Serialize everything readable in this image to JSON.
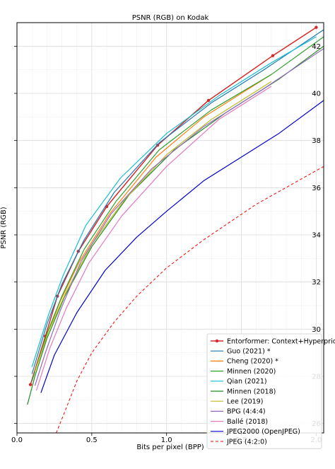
{
  "chart_data": {
    "type": "line",
    "title": "PSNR (RGB) on Kodak",
    "xlabel": "Bits per pixel (BPP)",
    "ylabel": "PSNR (RGB)",
    "xlim": [
      0.0,
      2.05
    ],
    "ylim": [
      25.6,
      43.0
    ],
    "xticks": [
      0.0,
      0.5,
      1.0,
      1.5,
      2.0
    ],
    "xtick_labels": [
      "0.0",
      "0.5",
      "1.0",
      "1.5",
      "2.0"
    ],
    "yticks": [
      26,
      28,
      30,
      32,
      34,
      36,
      38,
      40,
      42
    ],
    "ytick_labels": [
      "26",
      "28",
      "30",
      "32",
      "34",
      "36",
      "38",
      "40",
      "42"
    ],
    "grid": true,
    "legend_position": "lower-right",
    "series": [
      {
        "name": "Entorformer: Context+Hyperprior",
        "color": "#d62728",
        "dash": "",
        "marker": true,
        "width": 1.5,
        "points": [
          [
            0.09,
            27.65
          ],
          [
            0.19,
            29.7
          ],
          [
            0.27,
            31.4
          ],
          [
            0.41,
            33.3
          ],
          [
            0.6,
            35.2
          ],
          [
            0.94,
            37.8
          ],
          [
            1.28,
            39.7
          ],
          [
            1.71,
            41.6
          ],
          [
            2.0,
            42.8
          ]
        ]
      },
      {
        "name": "Guo (2021) *",
        "color": "#1f77b4",
        "dash": "",
        "marker": false,
        "width": 1.2,
        "points": [
          [
            0.1,
            28.1
          ],
          [
            0.2,
            30.2
          ],
          [
            0.3,
            31.9
          ],
          [
            0.45,
            33.8
          ],
          [
            0.65,
            35.8
          ],
          [
            0.95,
            37.9
          ],
          [
            1.3,
            39.6
          ],
          [
            1.65,
            41.0
          ],
          [
            2.05,
            42.7
          ]
        ]
      },
      {
        "name": "Cheng (2020) *",
        "color": "#ff7f0e",
        "dash": "",
        "marker": false,
        "width": 1.2,
        "points": [
          [
            0.11,
            28.0
          ],
          [
            0.19,
            29.6
          ],
          [
            0.29,
            31.2
          ],
          [
            0.42,
            32.9
          ],
          [
            0.62,
            34.9
          ],
          [
            0.93,
            37.3
          ],
          [
            1.25,
            39.0
          ],
          [
            1.7,
            40.8
          ]
        ]
      },
      {
        "name": "Minnen (2020)",
        "color": "#2ca02c",
        "dash": "",
        "marker": false,
        "width": 1.2,
        "points": [
          [
            0.1,
            27.8
          ],
          [
            0.2,
            29.8
          ],
          [
            0.3,
            31.4
          ],
          [
            0.45,
            33.4
          ],
          [
            0.66,
            35.4
          ],
          [
            0.95,
            37.6
          ],
          [
            1.3,
            39.3
          ],
          [
            1.7,
            40.8
          ],
          [
            2.05,
            42.4
          ]
        ]
      },
      {
        "name": "Qian (2021)",
        "color": "#17becf",
        "dash": "",
        "marker": false,
        "width": 1.2,
        "points": [
          [
            0.1,
            28.4
          ],
          [
            0.21,
            30.6
          ],
          [
            0.31,
            32.3
          ],
          [
            0.46,
            34.4
          ],
          [
            0.69,
            36.4
          ],
          [
            1.0,
            38.3
          ],
          [
            1.35,
            39.9
          ],
          [
            1.7,
            41.3
          ],
          [
            2.0,
            42.4
          ]
        ]
      },
      {
        "name": "Minnen (2018)",
        "color": "#228b22",
        "dash": "",
        "marker": false,
        "width": 1.2,
        "points": [
          [
            0.07,
            26.8
          ],
          [
            0.12,
            28.0
          ],
          [
            0.2,
            29.6
          ],
          [
            0.32,
            31.4
          ],
          [
            0.5,
            33.5
          ],
          [
            0.75,
            35.7
          ],
          [
            1.05,
            37.6
          ],
          [
            1.4,
            39.2
          ],
          [
            1.75,
            40.6
          ],
          [
            2.05,
            42.0
          ]
        ]
      },
      {
        "name": "Lee (2019)",
        "color": "#bcbd22",
        "dash": "",
        "marker": false,
        "width": 1.2,
        "points": [
          [
            0.12,
            28.2
          ],
          [
            0.21,
            29.9
          ],
          [
            0.33,
            31.6
          ],
          [
            0.5,
            33.6
          ],
          [
            0.72,
            35.5
          ],
          [
            1.0,
            37.4
          ],
          [
            1.3,
            38.9
          ],
          [
            1.7,
            40.5
          ]
        ]
      },
      {
        "name": "BPG (4:4:4)",
        "color": "#9467bd",
        "dash": "",
        "marker": false,
        "width": 1.2,
        "points": [
          [
            0.12,
            27.6
          ],
          [
            0.19,
            29.0
          ],
          [
            0.29,
            30.8
          ],
          [
            0.43,
            32.9
          ],
          [
            0.63,
            34.9
          ],
          [
            0.9,
            36.8
          ],
          [
            1.25,
            38.6
          ],
          [
            1.65,
            40.2
          ],
          [
            2.05,
            41.9
          ]
        ]
      },
      {
        "name": "Ballé (2018)",
        "color": "#e377c2",
        "dash": "",
        "marker": false,
        "width": 1.2,
        "points": [
          [
            0.13,
            27.4
          ],
          [
            0.22,
            29.2
          ],
          [
            0.33,
            30.9
          ],
          [
            0.48,
            32.8
          ],
          [
            0.7,
            34.8
          ],
          [
            1.0,
            36.9
          ],
          [
            1.35,
            38.9
          ],
          [
            1.7,
            40.3
          ]
        ]
      },
      {
        "name": "JPEG2000 (OpenJPEG)",
        "color": "#0000cd",
        "dash": "",
        "marker": false,
        "width": 1.2,
        "points": [
          [
            0.16,
            27.3
          ],
          [
            0.25,
            28.9
          ],
          [
            0.4,
            30.7
          ],
          [
            0.59,
            32.5
          ],
          [
            0.8,
            33.9
          ],
          [
            1.0,
            35.0
          ],
          [
            1.25,
            36.3
          ],
          [
            1.5,
            37.3
          ],
          [
            1.75,
            38.3
          ],
          [
            2.05,
            39.7
          ]
        ]
      },
      {
        "name": "JPEG (4:2:0)",
        "color": "#ff0000",
        "dash": "4,3",
        "marker": false,
        "width": 1.0,
        "points": [
          [
            0.25,
            25.4
          ],
          [
            0.32,
            26.5
          ],
          [
            0.4,
            27.8
          ],
          [
            0.5,
            29.0
          ],
          [
            0.65,
            30.3
          ],
          [
            0.8,
            31.4
          ],
          [
            1.0,
            32.6
          ],
          [
            1.25,
            33.8
          ],
          [
            1.6,
            35.3
          ],
          [
            2.05,
            36.9
          ]
        ]
      }
    ]
  }
}
